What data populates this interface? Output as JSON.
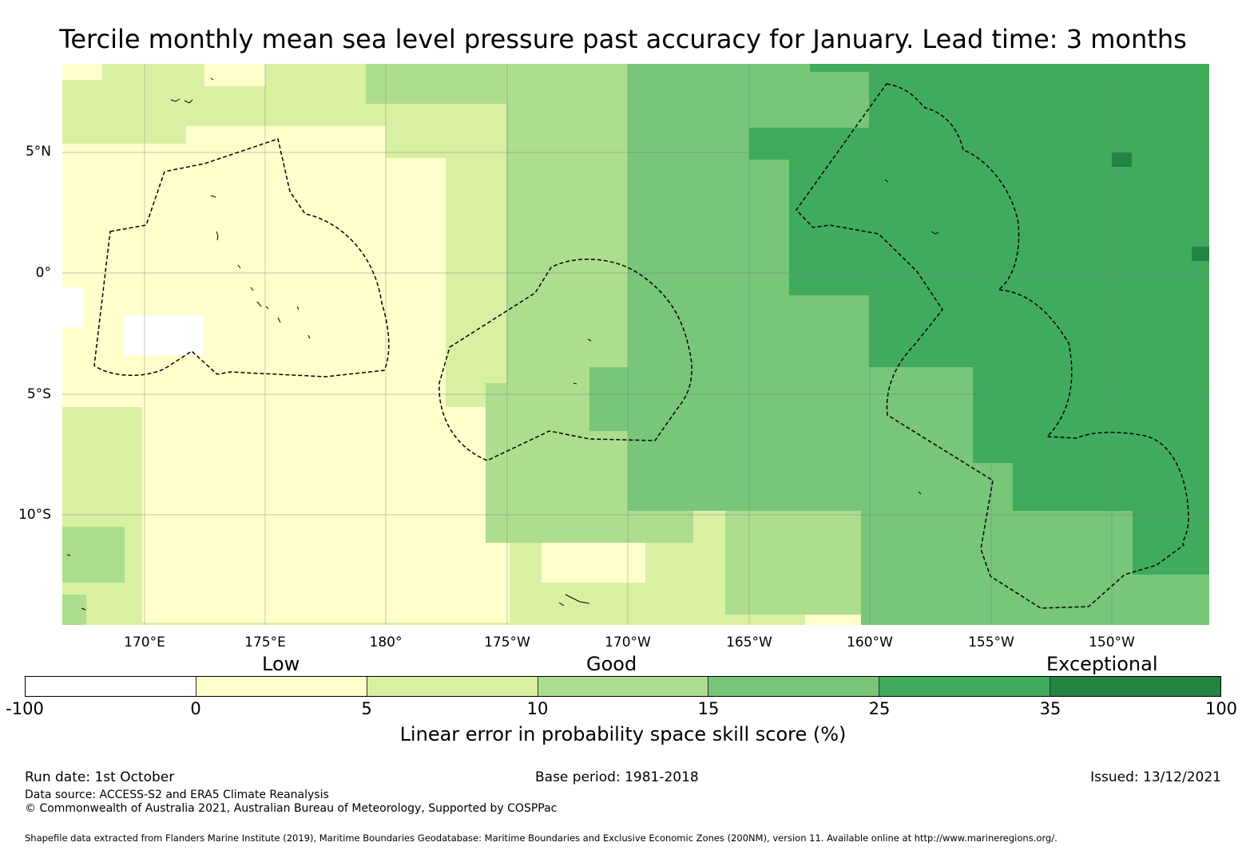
{
  "title": "Tercile monthly mean sea level pressure past accuracy for January. Lead time: 3 months",
  "map": {
    "latitude_labels": [
      "5°N",
      "0°",
      "5°S",
      "10°S"
    ],
    "longitude_labels": [
      "170°E",
      "175°E",
      "180°",
      "175°W",
      "170°W",
      "165°W",
      "160°W",
      "155°W",
      "150°W"
    ]
  },
  "legend": {
    "category_labels": [
      "Low",
      "Good",
      "Exceptional"
    ],
    "tick_labels": [
      "-100",
      "0",
      "5",
      "10",
      "15",
      "25",
      "35",
      "100"
    ],
    "colors": [
      "#ffffff",
      "#ffffcc",
      "#d9f0a3",
      "#addd8e",
      "#78c679",
      "#41ab5d",
      "#238443"
    ],
    "label": "Linear error in probability space skill score (%)"
  },
  "footer": {
    "run_date": "Run date: 1st October",
    "base_period": "Base period: 1981-2018",
    "issued": "Issued: 13/12/2021",
    "data_source": "Data source: ACCESS-S2 and ERA5 Climate Reanalysis",
    "copyright": "© Commonwealth of Australia 2021, Australian Bureau of Meteorology, Supported by COSPPac",
    "shapefile": "Shapefile data extracted from Flanders Marine Institute (2019), Maritime Boundaries Geodatabase: Maritime Boundaries and Exclusive Economic Zones (200NM), version 11. Available online at http://www.marineregions.org/."
  }
}
